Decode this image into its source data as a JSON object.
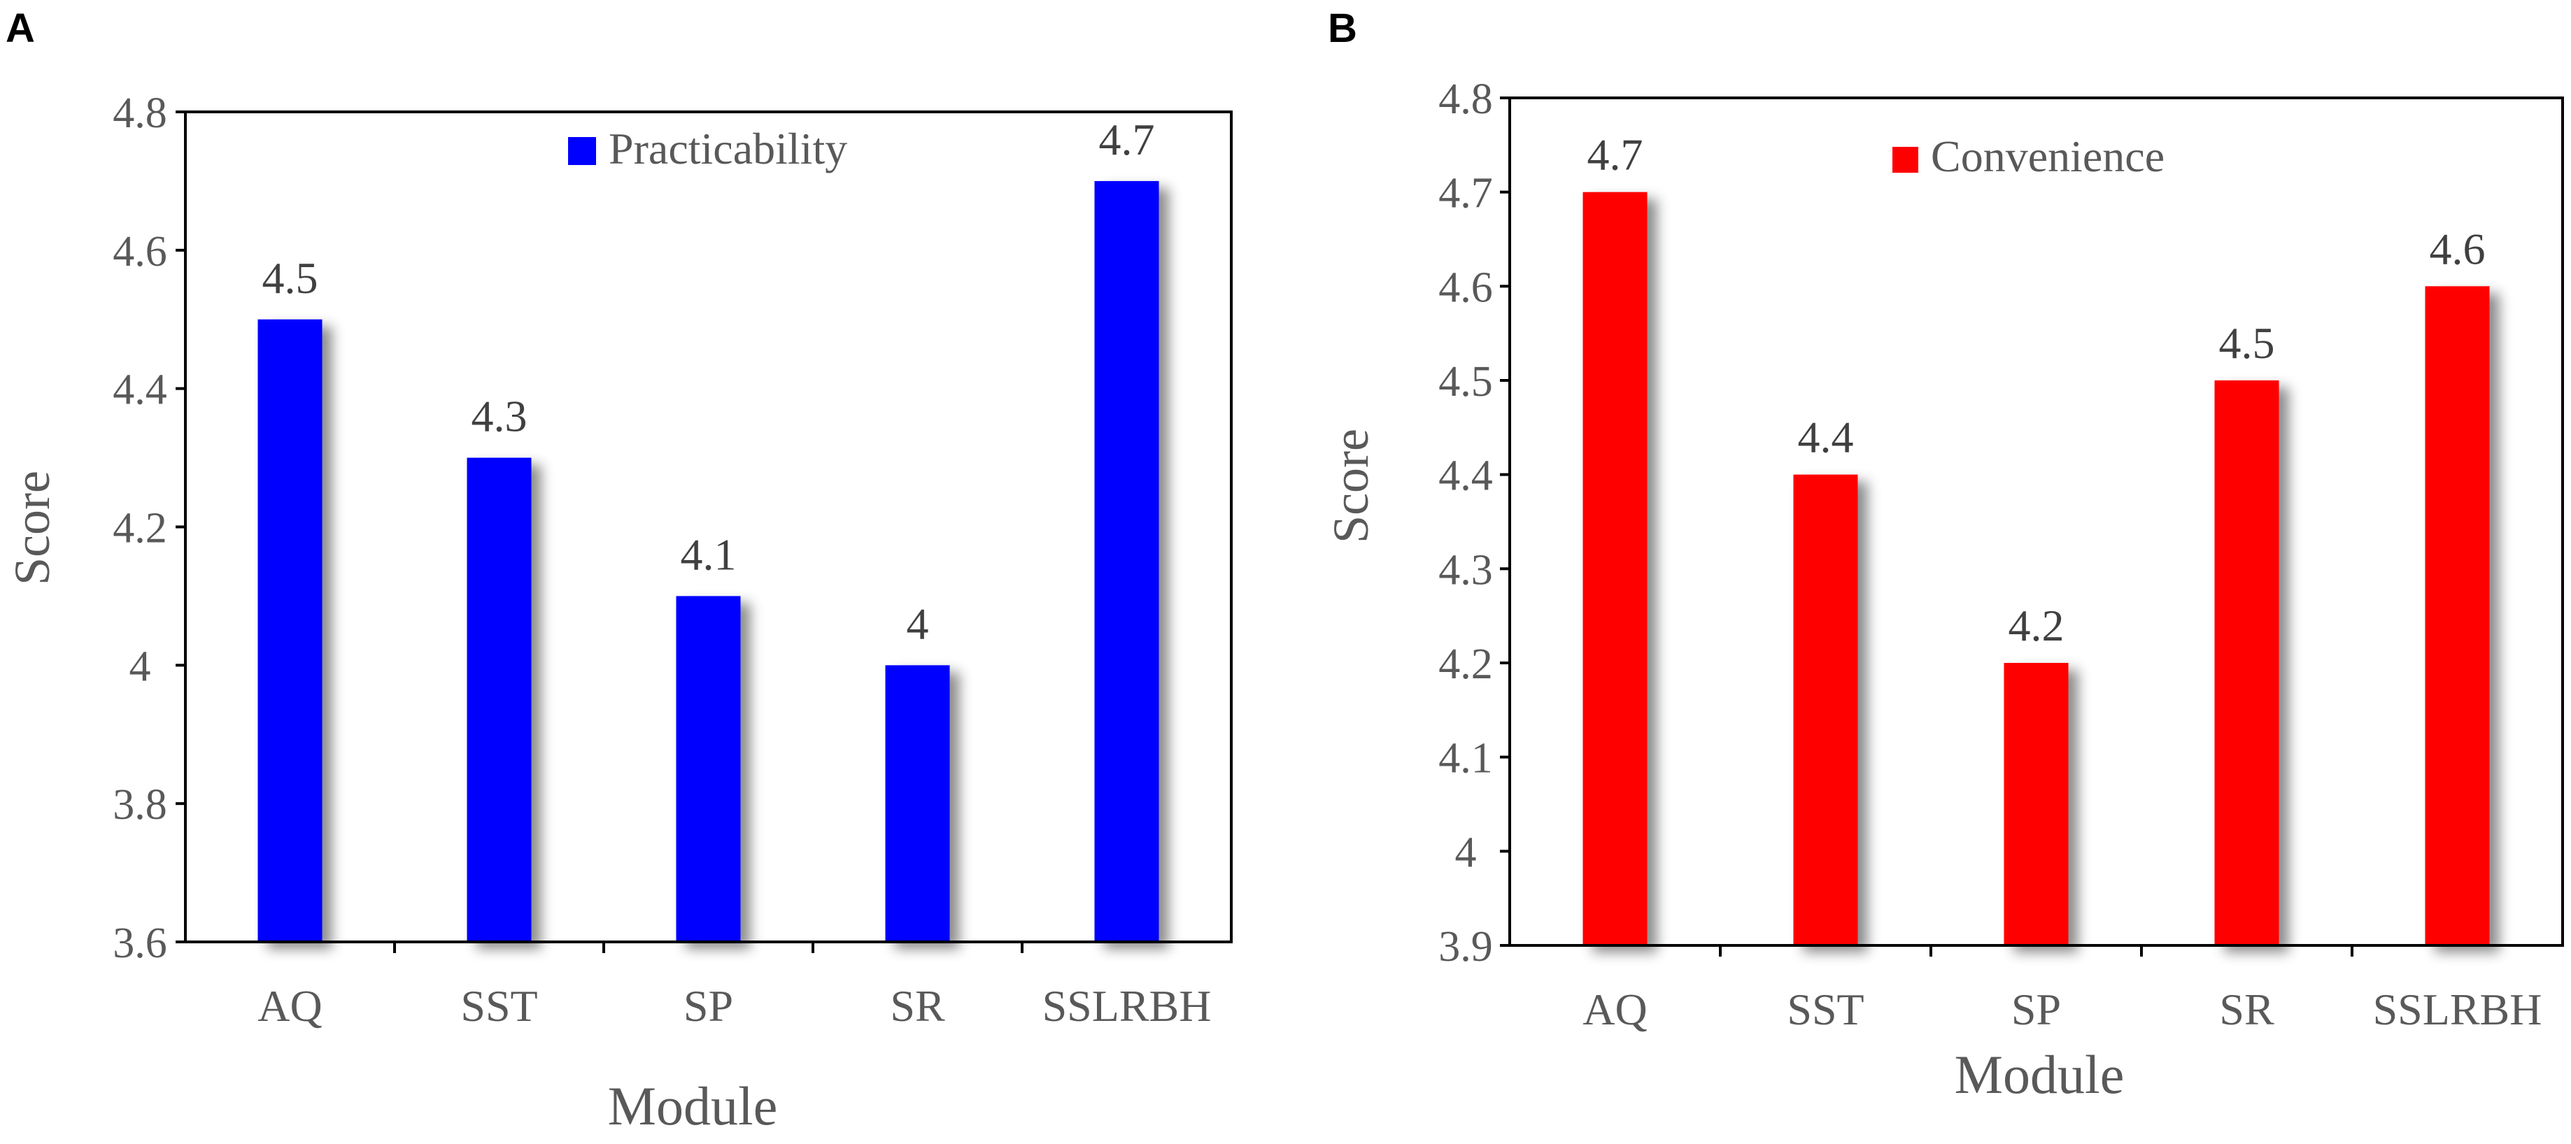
{
  "chart_data": [
    {
      "panel": "A",
      "type": "bar",
      "title": "",
      "xlabel": "Module",
      "ylabel": "Score",
      "categories": [
        "AQ",
        "SST",
        "SP",
        "SR",
        "SSLRBH"
      ],
      "series": [
        {
          "name": "Practicability",
          "color": "#0000FF",
          "values": [
            4.5,
            4.3,
            4.1,
            4.0,
            4.7
          ]
        }
      ],
      "data_labels": [
        "4.5",
        "4.3",
        "4.1",
        "4",
        "4.7"
      ],
      "ylim": [
        3.6,
        4.8
      ],
      "yticks": [
        3.6,
        3.8,
        4.0,
        4.2,
        4.4,
        4.6,
        4.8
      ],
      "ytick_labels": [
        "3.6",
        "3.8",
        "4",
        "4.2",
        "4.4",
        "4.6",
        "4.8"
      ],
      "grid": false,
      "legend": "top-center"
    },
    {
      "panel": "B",
      "type": "bar",
      "title": "",
      "xlabel": "Module",
      "ylabel": "Score",
      "categories": [
        "AQ",
        "SST",
        "SP",
        "SR",
        "SSLRBH"
      ],
      "series": [
        {
          "name": "Convenience",
          "color": "#FF0000",
          "values": [
            4.7,
            4.4,
            4.2,
            4.5,
            4.6
          ]
        }
      ],
      "data_labels": [
        "4.7",
        "4.4",
        "4.2",
        "4.5",
        "4.6"
      ],
      "ylim": [
        3.9,
        4.8
      ],
      "yticks": [
        3.9,
        4.0,
        4.1,
        4.2,
        4.3,
        4.4,
        4.5,
        4.6,
        4.7,
        4.8
      ],
      "ytick_labels": [
        "3.9",
        "4",
        "4.1",
        "4.2",
        "4.3",
        "4.4",
        "4.5",
        "4.6",
        "4.7",
        "4.8"
      ],
      "grid": false,
      "legend": "top-center"
    }
  ]
}
